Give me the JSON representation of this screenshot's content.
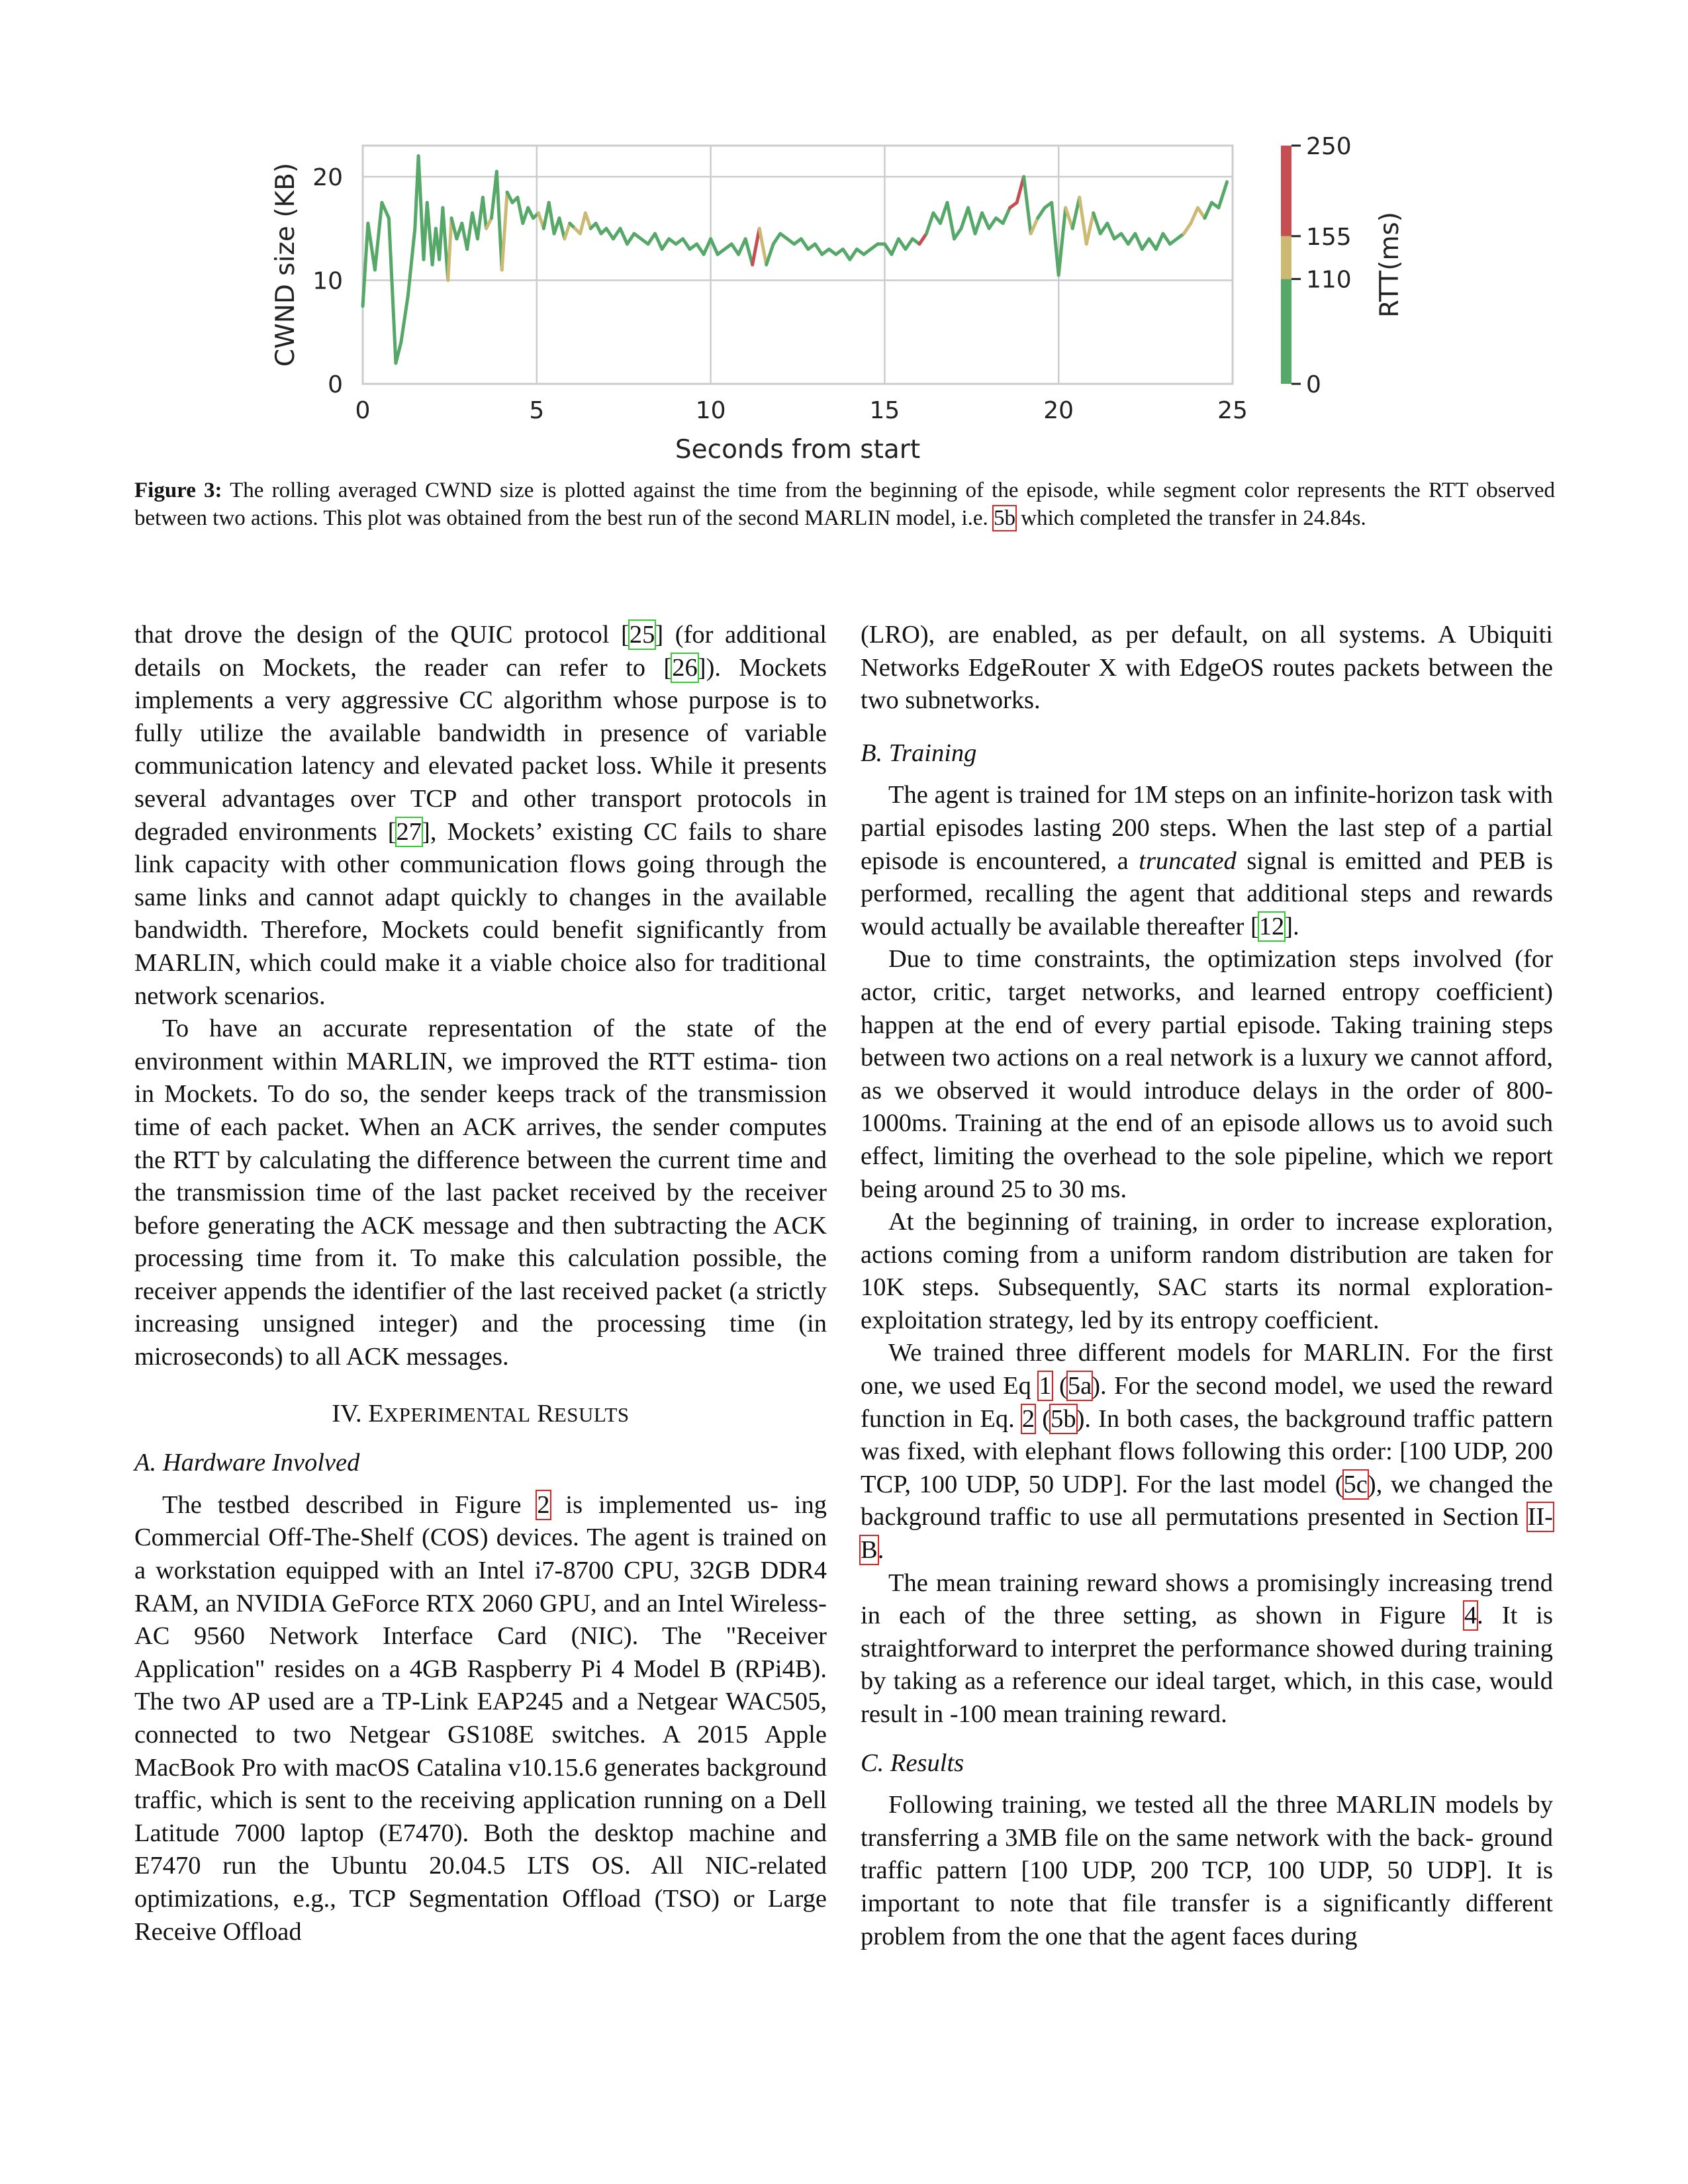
{
  "chart_data": {
    "type": "line",
    "xlabel": "Seconds from start",
    "ylabel": "CWND size (KB)",
    "xlim": [
      0,
      25
    ],
    "ylim": [
      0,
      23
    ],
    "xticks": [
      "0",
      "5",
      "10",
      "15",
      "20",
      "25"
    ],
    "yticks": [
      "0",
      "10",
      "20"
    ],
    "grid": true,
    "colorbar": {
      "label": "RTT(ms)",
      "ticks": [
        "0",
        "110",
        "155",
        "250"
      ],
      "bands": [
        {
          "from": 0,
          "to": 110,
          "color": "#55a868"
        },
        {
          "from": 110,
          "to": 155,
          "color": "#ccb974"
        },
        {
          "from": 155,
          "to": 250,
          "color": "#c44e52"
        }
      ]
    },
    "series": [
      {
        "x": [
          0.0,
          0.15,
          0.35,
          0.55,
          0.75,
          0.95,
          1.1,
          1.3,
          1.5,
          1.6,
          1.75,
          1.85,
          2.0,
          2.1,
          2.2,
          2.3,
          2.45,
          2.55,
          2.7,
          2.85,
          3.0,
          3.15,
          3.3,
          3.45,
          3.55,
          3.7,
          3.85,
          4.0,
          4.15,
          4.3,
          4.45,
          4.6,
          4.75,
          4.9,
          5.05,
          5.2,
          5.35,
          5.5,
          5.65,
          5.8,
          5.95,
          6.1,
          6.25,
          6.4,
          6.55,
          6.7,
          6.85,
          7.0,
          7.2,
          7.4,
          7.6,
          7.8,
          8.0,
          8.2,
          8.4,
          8.6,
          8.8,
          9.0,
          9.2,
          9.4,
          9.6,
          9.8,
          10.0,
          10.2,
          10.4,
          10.6,
          10.8,
          11.0,
          11.2,
          11.4,
          11.6,
          11.8,
          12.0,
          12.2,
          12.4,
          12.6,
          12.8,
          13.0,
          13.2,
          13.4,
          13.6,
          13.8,
          14.0,
          14.2,
          14.4,
          14.6,
          14.8,
          15.0,
          15.2,
          15.4,
          15.6,
          15.8,
          16.0,
          16.2,
          16.4,
          16.6,
          16.8,
          17.0,
          17.2,
          17.4,
          17.6,
          17.8,
          18.0,
          18.2,
          18.4,
          18.6,
          18.8,
          19.0,
          19.2,
          19.4,
          19.6,
          19.8,
          20.0,
          20.2,
          20.4,
          20.6,
          20.8,
          21.0,
          21.2,
          21.4,
          21.6,
          21.8,
          22.0,
          22.2,
          22.4,
          22.6,
          22.8,
          23.0,
          23.2,
          23.4,
          23.6,
          23.8,
          24.0,
          24.2,
          24.4,
          24.6,
          24.84
        ],
        "y": [
          7.5,
          15.5,
          11.0,
          17.5,
          16.0,
          2.0,
          4.0,
          8.5,
          15.0,
          22.0,
          12.0,
          17.5,
          11.5,
          15.0,
          12.0,
          17.0,
          10.0,
          16.0,
          14.0,
          15.5,
          13.0,
          16.5,
          14.0,
          18.0,
          15.0,
          16.0,
          20.5,
          11.0,
          18.5,
          17.5,
          18.0,
          15.5,
          17.0,
          16.0,
          16.5,
          15.0,
          17.5,
          14.5,
          16.0,
          14.0,
          15.5,
          15.0,
          14.5,
          16.5,
          15.0,
          15.5,
          14.5,
          15.0,
          14.0,
          15.0,
          13.5,
          14.5,
          14.0,
          13.5,
          14.5,
          13.0,
          14.0,
          13.5,
          14.0,
          13.0,
          13.5,
          12.5,
          14.0,
          12.5,
          13.0,
          13.5,
          12.5,
          14.0,
          11.5,
          15.0,
          11.5,
          13.5,
          14.5,
          14.0,
          13.5,
          14.0,
          13.0,
          13.5,
          12.5,
          13.0,
          12.5,
          13.0,
          12.0,
          13.0,
          12.5,
          13.0,
          13.5,
          13.5,
          12.5,
          14.0,
          13.0,
          14.0,
          13.5,
          14.5,
          16.5,
          15.5,
          17.5,
          14.0,
          15.0,
          17.0,
          14.5,
          16.5,
          15.0,
          16.0,
          15.5,
          17.0,
          17.5,
          20.0,
          14.5,
          16.0,
          17.0,
          17.5,
          10.5,
          17.0,
          15.0,
          18.0,
          13.5,
          16.5,
          14.5,
          15.5,
          14.0,
          14.5,
          13.5,
          14.5,
          13.0,
          14.0,
          13.0,
          14.5,
          13.5,
          14.0,
          14.5,
          15.5,
          17.0,
          16.0,
          17.5,
          17.0,
          19.5
        ],
        "rtt": [
          "g",
          "g",
          "g",
          "g",
          "g",
          "g",
          "g",
          "g",
          "g",
          "g",
          "g",
          "g",
          "g",
          "g",
          "g",
          "g",
          "y",
          "g",
          "g",
          "g",
          "g",
          "g",
          "g",
          "g",
          "y",
          "g",
          "g",
          "y",
          "g",
          "g",
          "g",
          "g",
          "g",
          "g",
          "y",
          "g",
          "g",
          "g",
          "g",
          "y",
          "g",
          "y",
          "y",
          "y",
          "g",
          "g",
          "g",
          "g",
          "g",
          "g",
          "g",
          "g",
          "g",
          "g",
          "g",
          "g",
          "g",
          "g",
          "g",
          "g",
          "g",
          "g",
          "g",
          "g",
          "g",
          "g",
          "g",
          "g",
          "r",
          "y",
          "g",
          "g",
          "g",
          "g",
          "g",
          "g",
          "g",
          "g",
          "g",
          "g",
          "g",
          "g",
          "g",
          "g",
          "g",
          "g",
          "g",
          "g",
          "g",
          "g",
          "g",
          "g",
          "r",
          "g",
          "g",
          "g",
          "g",
          "g",
          "g",
          "g",
          "g",
          "g",
          "g",
          "g",
          "g",
          "r",
          "r",
          "g",
          "y",
          "g",
          "g",
          "g",
          "g",
          "y",
          "g",
          "y",
          "y",
          "g",
          "g",
          "g",
          "g",
          "g",
          "g",
          "g",
          "g",
          "g",
          "g",
          "g",
          "g",
          "g",
          "y",
          "y",
          "y",
          "g",
          "g",
          "g",
          "g",
          "y",
          "g"
        ]
      }
    ]
  },
  "caption": {
    "label": "Figure 3:",
    "text_a": " The rolling averaged CWND size is plotted against the time from the beginning of the episode, while segment color represents the RTT observed between two actions. This plot was obtained from the best run of the second MARLIN model, i.e. ",
    "ref": "5b",
    "text_b": " which completed the transfer in 24.84s."
  },
  "left": {
    "p1_a": "that drove the design of the QUIC protocol [",
    "p1_ref1": "25",
    "p1_b": "] (for additional details on Mockets, the reader can refer to [",
    "p1_ref2": "26",
    "p1_c": "]). Mockets implements a very aggressive CC algorithm whose purpose is to fully utilize the available bandwidth in presence of variable communication latency and elevated packet loss. While it presents several advantages over TCP and other transport protocols in degraded environments [",
    "p1_ref3": "27",
    "p1_d": "], Mockets’ existing CC fails to share link capacity with other communication flows going through the same links and cannot adapt quickly to changes in the available bandwidth. Therefore, Mockets could benefit significantly from MARLIN, which could make it a viable choice also for traditional network scenarios.",
    "p2": "To have an accurate representation of the state of the environment within MARLIN, we improved the RTT estima- tion in Mockets. To do so, the sender keeps track of the transmission time of each packet. When an ACK arrives, the sender computes the RTT by calculating the difference between the current time and the transmission time of the last packet received by the receiver before generating the ACK message and then subtracting the ACK processing time from it. To make this calculation possible, the receiver appends the identifier of the last received packet (a strictly increasing unsigned integer) and the processing time (in microseconds) to all ACK messages.",
    "section_num": "IV. ",
    "section_e": "E",
    "section_xperimental": "XPERIMENTAL",
    "section_r": " R",
    "section_esults": "ESULTS",
    "subsec_a": "A.  Hardware Involved",
    "p3_a": "The testbed described in Figure ",
    "p3_ref": "2",
    "p3_b": " is implemented us- ing Commercial Off-The-Shelf (COS) devices. The agent is trained on a workstation equipped with an Intel i7-8700 CPU, 32GB DDR4 RAM, an NVIDIA GeForce RTX 2060 GPU, and an Intel Wireless-AC 9560 Network Interface Card (NIC). The \"Receiver Application\" resides on a 4GB Raspberry Pi 4 Model B (RPi4B). The two AP used are a TP-Link EAP245 and a Netgear WAC505, connected to two Netgear GS108E switches. A 2015 Apple MacBook Pro with macOS Catalina v10.15.6 generates background traffic, which is sent to the receiving application running on a Dell Latitude 7000 laptop (E7470). Both the desktop machine and E7470 run the Ubuntu 20.04.5 LTS OS. All NIC-related optimizations, e.g., TCP Segmentation Offload (TSO) or Large Receive Offload"
  },
  "right": {
    "p0": "(LRO), are enabled, as per default, on all systems. A Ubiquiti Networks EdgeRouter X with EdgeOS routes packets between the two subnetworks.",
    "subsec_b": "B.  Training",
    "p1_a": "The agent is trained for 1M steps on an infinite-horizon task with partial episodes lasting 200 steps. When the last step of a partial episode is encountered, a ",
    "p1_it": "truncated",
    "p1_b": " signal is emitted and PEB is performed, recalling the agent that additional steps and rewards would actually be available thereafter [",
    "p1_ref": "12",
    "p1_c": "].",
    "p2": "Due to time constraints, the optimization steps involved (for actor, critic, target networks, and learned entropy coefficient) happen at the end of every partial episode. Taking training steps between two actions on a real network is a luxury we cannot afford, as we observed it would introduce delays in the order of  800-1000ms. Training at the end of an episode allows us to avoid such effect, limiting the overhead to the sole pipeline, which we report being around 25 to 30 ms.",
    "p3": "At the beginning of training, in order to increase exploration, actions coming from a uniform random distribution are taken for 10K steps. Subsequently, SAC starts its normal exploration- exploitation strategy, led by its entropy coefficient.",
    "p4_a": "We trained three different models for MARLIN. For the first one, we used Eq ",
    "p4_ref1": "1",
    "p4_b": " (",
    "p4_ref2": "5a",
    "p4_c": "). For the second model, we used the reward function in Eq. ",
    "p4_ref3": "2",
    "p4_d": " (",
    "p4_ref4": "5b",
    "p4_e": "). In both cases, the background traffic pattern was fixed, with elephant flows following this order: [100 UDP, 200 TCP, 100 UDP, 50 UDP]. For the last model (",
    "p4_ref5": "5c",
    "p4_f": "), we changed the background traffic to use all permutations presented in Section ",
    "p4_ref6": "II-B",
    "p4_g": ".",
    "p5_a": "The mean training reward shows a promisingly increasing trend in each of the three setting, as shown in Figure ",
    "p5_ref": "4",
    "p5_b": ". It is straightforward to interpret the performance showed during training by taking as a reference our ideal target, which, in this case, would result in -100 mean training reward.",
    "subsec_c": "C.  Results",
    "p6": "Following training, we tested all the three MARLIN models by transferring a 3MB file on the same network with the back- ground traffic pattern [100 UDP, 200 TCP, 100 UDP, 50 UDP]. It is important to note that file transfer is a significantly different problem from the one that the agent faces during"
  }
}
